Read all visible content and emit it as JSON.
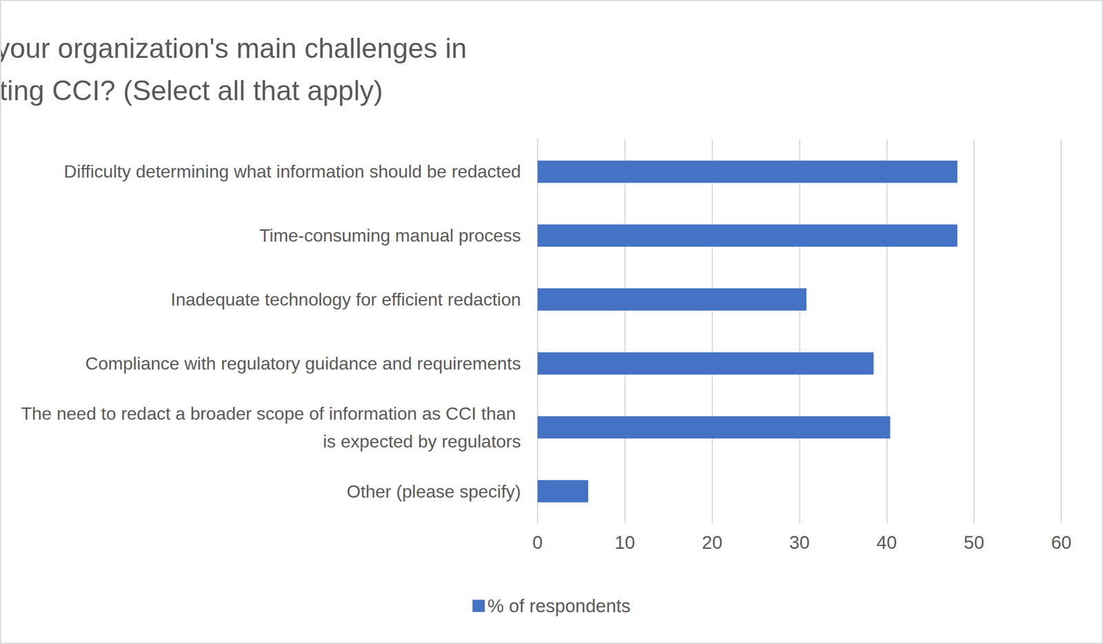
{
  "chart_data": {
    "type": "bar",
    "orientation": "horizontal",
    "title": "Q: What are your organization's main challenges in redacting CCI? (Select all that apply)",
    "categories": [
      "Difficulty determining what information should be redacted",
      "Time-consuming manual process",
      "Inadequate technology for efficient redaction",
      "Compliance with regulatory guidance and requirements",
      "The need to redact a broader scope of information as CCI than is expected by regulators",
      "Other (please specify)"
    ],
    "series": [
      {
        "name": "% of respondents",
        "color": "#4472c4",
        "values": [
          48.1,
          48.1,
          30.8,
          38.5,
          40.4,
          5.8
        ]
      }
    ],
    "xlim": [
      0,
      60
    ],
    "xticks": [
      0,
      10,
      20,
      30,
      40,
      50,
      60
    ],
    "grid": true,
    "legend": "bottom"
  }
}
